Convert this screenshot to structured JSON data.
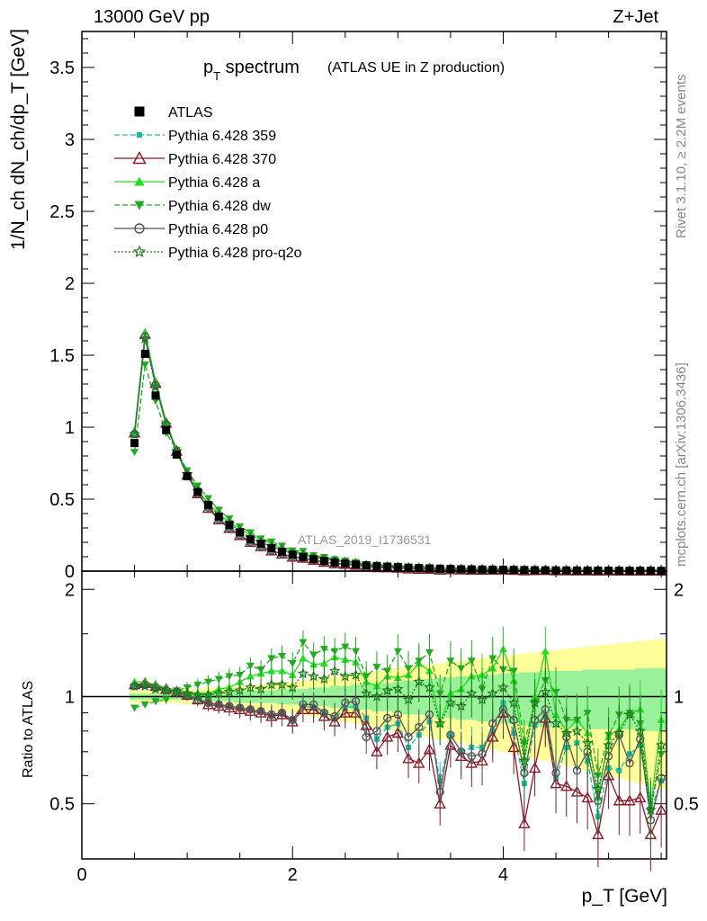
{
  "header": {
    "left": "13000 GeV pp",
    "right": "Z+Jet"
  },
  "title": {
    "main": "p",
    "main_sub": "T",
    "main_rest": " spectrum",
    "note": "(ATLAS UE in Z production)"
  },
  "side_labels": {
    "rivet": "Rivet 3.1.10, ≥ 2.2M events",
    "mcplots": "mcplots.cern.ch [arXiv:1306.3436]"
  },
  "watermark": "ATLAS_2019_I1736531",
  "axes": {
    "ylabel_top": "1/N_ch dN_ch/dp_T [GeV]",
    "ylabel_ratio": "Ratio to ATLAS",
    "xlabel": "p_T [GeV]"
  },
  "colors": {
    "data": "#000000",
    "p359": "#1ABC9C",
    "p370": "#8B1A2B",
    "pa": "#22DD22",
    "pdw": "#22AA22",
    "pp0": "#555555",
    "pq2o": "#1E7A1E",
    "band_inner": "#99F299",
    "band_outer": "#FFFF99"
  },
  "chart_data": [
    {
      "type": "scatter",
      "panel": "main",
      "xlim": [
        0,
        5.55
      ],
      "ylim": [
        0,
        3.75
      ],
      "xticks": [
        0,
        2,
        4
      ],
      "yticks": [
        0,
        0.5,
        1,
        1.5,
        2,
        2.5,
        3,
        3.5
      ],
      "x": [
        0.5,
        0.6,
        0.7,
        0.8,
        0.9,
        1.0,
        1.1,
        1.2,
        1.3,
        1.4,
        1.5,
        1.6,
        1.7,
        1.8,
        1.9,
        2.0,
        2.1,
        2.2,
        2.3,
        2.4,
        2.5,
        2.6,
        2.7,
        2.8,
        2.9,
        3.0,
        3.1,
        3.2,
        3.3,
        3.4,
        3.5,
        3.6,
        3.7,
        3.8,
        3.9,
        4.0,
        4.1,
        4.2,
        4.3,
        4.4,
        4.5,
        4.6,
        4.7,
        4.8,
        4.9,
        5.0,
        5.1,
        5.2,
        5.3,
        5.4,
        5.5
      ],
      "series": [
        {
          "name": "ATLAS",
          "key": "data",
          "marker": "square",
          "values": [
            0.89,
            1.51,
            1.22,
            0.98,
            0.81,
            0.66,
            0.55,
            0.46,
            0.38,
            0.32,
            0.27,
            0.22,
            0.19,
            0.16,
            0.135,
            0.115,
            0.098,
            0.083,
            0.071,
            0.061,
            0.053,
            0.046,
            0.04,
            0.035,
            0.031,
            0.027,
            0.024,
            0.021,
            0.019,
            0.017,
            0.015,
            0.013,
            0.012,
            0.011,
            0.01,
            0.009,
            0.008,
            0.0072,
            0.0065,
            0.0058,
            0.0052,
            0.0047,
            0.0043,
            0.0039,
            0.0035,
            0.0032,
            0.0029,
            0.0026,
            0.0024,
            0.0022,
            0.002
          ]
        },
        {
          "name": "Pythia 6.428 359",
          "key": "p359",
          "marker": "smallsquare",
          "dash": "6,3"
        },
        {
          "name": "Pythia 6.428 370",
          "key": "p370",
          "marker": "opentriangle",
          "dash": ""
        },
        {
          "name": "Pythia 6.428 a",
          "key": "pa",
          "marker": "triangle",
          "dash": ""
        },
        {
          "name": "Pythia 6.428 dw",
          "key": "pdw",
          "marker": "invtriangle",
          "dash": "6,3"
        },
        {
          "name": "Pythia 6.428 p0",
          "key": "pp0",
          "marker": "opencircle",
          "dash": ""
        },
        {
          "name": "Pythia 6.428 pro-q2o",
          "key": "pq2o",
          "marker": "openstar",
          "dash": "2,2"
        }
      ]
    },
    {
      "type": "line",
      "panel": "ratio",
      "xlim": [
        0,
        5.55
      ],
      "ylim": [
        0.35,
        2.25
      ],
      "yticks": [
        0.5,
        1,
        2
      ],
      "x": [
        0.5,
        0.6,
        0.7,
        0.8,
        0.9,
        1.0,
        1.1,
        1.2,
        1.3,
        1.4,
        1.5,
        1.6,
        1.7,
        1.8,
        1.9,
        2.0,
        2.1,
        2.2,
        2.3,
        2.4,
        2.5,
        2.6,
        2.7,
        2.8,
        2.9,
        3.0,
        3.1,
        3.2,
        3.3,
        3.4,
        3.5,
        3.6,
        3.7,
        3.8,
        3.9,
        4.0,
        4.1,
        4.2,
        4.3,
        4.4,
        4.5,
        4.6,
        4.7,
        4.8,
        4.9,
        5.0,
        5.1,
        5.2,
        5.3,
        5.4,
        5.5
      ],
      "band_inner": [
        0.02,
        0.02,
        0.02,
        0.02,
        0.02,
        0.02,
        0.03,
        0.03,
        0.03,
        0.03,
        0.04,
        0.04,
        0.04,
        0.04,
        0.05,
        0.05,
        0.05,
        0.06,
        0.06,
        0.07,
        0.07,
        0.08,
        0.08,
        0.09,
        0.09,
        0.1,
        0.11,
        0.11,
        0.12,
        0.13,
        0.13,
        0.14,
        0.14,
        0.15,
        0.15,
        0.16,
        0.16,
        0.17,
        0.17,
        0.18,
        0.18,
        0.18,
        0.18,
        0.19,
        0.19,
        0.19,
        0.19,
        0.19,
        0.2,
        0.2,
        0.2
      ],
      "band_outer": [
        0.04,
        0.04,
        0.04,
        0.04,
        0.04,
        0.05,
        0.05,
        0.06,
        0.06,
        0.07,
        0.07,
        0.08,
        0.08,
        0.09,
        0.1,
        0.1,
        0.11,
        0.12,
        0.13,
        0.14,
        0.15,
        0.16,
        0.17,
        0.18,
        0.19,
        0.2,
        0.21,
        0.22,
        0.23,
        0.24,
        0.25,
        0.26,
        0.27,
        0.28,
        0.29,
        0.3,
        0.31,
        0.32,
        0.33,
        0.34,
        0.35,
        0.36,
        0.37,
        0.38,
        0.39,
        0.4,
        0.41,
        0.42,
        0.43,
        0.44,
        0.45
      ],
      "series": [
        {
          "key": "p359",
          "values": [
            1.07,
            1.07,
            1.06,
            1.04,
            1.02,
            1.01,
            0.99,
            0.96,
            0.95,
            0.94,
            0.93,
            0.92,
            0.91,
            0.88,
            0.9,
            0.86,
            0.94,
            0.93,
            0.9,
            0.87,
            0.93,
            0.94,
            0.87,
            0.76,
            0.82,
            0.84,
            0.72,
            0.78,
            0.85,
            0.58,
            0.78,
            0.7,
            0.72,
            0.72,
            0.8,
            0.96,
            0.79,
            0.57,
            0.83,
            0.88,
            0.59,
            0.72,
            0.74,
            0.66,
            0.46,
            0.63,
            0.62,
            0.69,
            0.73,
            0.48,
            0.58
          ]
        },
        {
          "key": "p370",
          "values": [
            1.08,
            1.09,
            1.07,
            1.05,
            1.03,
            1.01,
            0.98,
            0.95,
            0.94,
            0.93,
            0.92,
            0.91,
            0.9,
            0.88,
            0.89,
            0.85,
            0.92,
            0.92,
            0.88,
            0.85,
            0.9,
            0.9,
            0.83,
            0.7,
            0.77,
            0.79,
            0.67,
            0.65,
            0.71,
            0.5,
            0.73,
            0.68,
            0.65,
            0.66,
            0.77,
            0.9,
            0.72,
            0.44,
            0.63,
            0.87,
            0.57,
            0.56,
            0.54,
            0.52,
            0.41,
            0.6,
            0.51,
            0.51,
            0.52,
            0.41,
            0.48
          ]
        },
        {
          "key": "pa",
          "values": [
            1.1,
            1.1,
            1.08,
            1.06,
            1.04,
            1.03,
            1.02,
            1.02,
            1.05,
            1.06,
            1.1,
            1.14,
            1.16,
            1.18,
            1.18,
            1.15,
            1.28,
            1.23,
            1.24,
            1.29,
            1.27,
            1.25,
            1.1,
            1.07,
            1.14,
            1.13,
            1.15,
            1.24,
            1.18,
            0.84,
            1.02,
            1.05,
            1.14,
            1.15,
            1.2,
            1.36,
            1.11,
            0.67,
            1.0,
            1.34,
            0.89,
            0.8,
            0.86,
            0.79,
            0.52,
            0.77,
            0.81,
            0.9,
            0.92,
            0.49,
            0.86
          ]
        },
        {
          "key": "pdw",
          "values": [
            0.93,
            0.95,
            0.97,
            0.98,
            1.04,
            1.06,
            1.08,
            1.1,
            1.12,
            1.14,
            1.15,
            1.22,
            1.19,
            1.28,
            1.3,
            1.24,
            1.42,
            1.31,
            1.36,
            1.34,
            1.38,
            1.34,
            1.14,
            1.21,
            1.18,
            1.34,
            1.2,
            1.26,
            1.33,
            1.02,
            1.26,
            1.2,
            1.26,
            1.05,
            1.28,
            1.19,
            1.18,
            0.74,
            0.96,
            1.11,
            1.03,
            0.86,
            0.86,
            0.9,
            0.6,
            0.78,
            0.89,
            0.9,
            0.84,
            0.48,
            0.69
          ]
        },
        {
          "key": "pp0",
          "values": [
            1.07,
            1.08,
            1.06,
            1.04,
            1.03,
            1.01,
            0.98,
            0.96,
            0.95,
            0.94,
            0.93,
            0.92,
            0.91,
            0.89,
            0.9,
            0.86,
            0.95,
            0.95,
            0.9,
            0.88,
            0.96,
            0.97,
            0.77,
            0.8,
            0.87,
            0.89,
            0.77,
            0.82,
            0.89,
            0.54,
            0.78,
            0.7,
            0.68,
            0.69,
            0.84,
            0.92,
            0.86,
            0.61,
            0.86,
            0.92,
            0.61,
            0.77,
            0.62,
            0.7,
            0.51,
            0.68,
            0.78,
            0.65,
            0.76,
            0.45,
            0.59
          ]
        },
        {
          "key": "pq2o",
          "values": [
            1.07,
            1.07,
            1.05,
            1.04,
            1.03,
            1.02,
            1.01,
            1.01,
            1.02,
            1.03,
            1.04,
            1.06,
            1.05,
            1.08,
            1.08,
            1.06,
            1.16,
            1.14,
            1.12,
            1.18,
            1.14,
            1.15,
            1.02,
            1.0,
            1.04,
            1.05,
            0.98,
            1.1,
            1.06,
            0.84,
            0.96,
            0.94,
            1.02,
            0.98,
            1.02,
            1.06,
            0.96,
            0.66,
            0.96,
            1.03,
            0.84,
            0.79,
            0.8,
            0.74,
            0.55,
            0.73,
            0.79,
            0.89,
            0.8,
            0.48,
            0.73
          ]
        }
      ]
    }
  ]
}
